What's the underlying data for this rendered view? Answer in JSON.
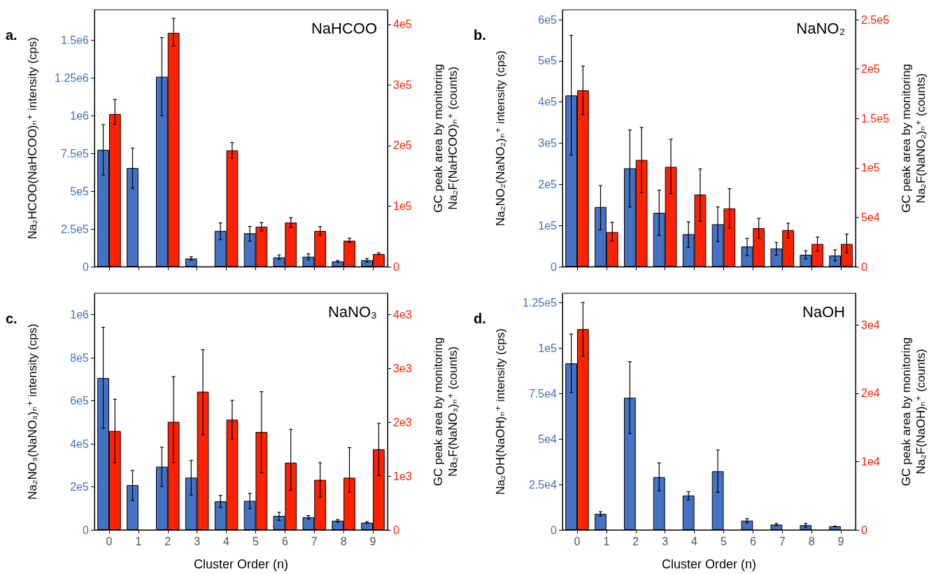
{
  "chart_data": [
    {
      "type": "bar",
      "title": "NaHCOO",
      "annotations": [
        "a."
      ],
      "categories": [
        "0",
        "1",
        "2",
        "3",
        "4",
        "5",
        "6",
        "7",
        "8",
        "9"
      ],
      "ylabel": "Na₂HCOO(NaHCOO)ₙ⁺ intensity (cps)",
      "y2label": "GC peak area by monitoring\nNa₂F(NaHCOO)ₙ⁺ (counts)",
      "ylim": [
        0,
        1700000
      ],
      "yticks": [
        {
          "value": 0,
          "label": "0"
        },
        {
          "value": 250000,
          "label": "2.5e5"
        },
        {
          "value": 500000,
          "label": "5e5"
        },
        {
          "value": 750000,
          "label": "7.5e5"
        },
        {
          "value": 1000000,
          "label": "1e6"
        },
        {
          "value": 1250000,
          "label": "1.25e6"
        },
        {
          "value": 1500000,
          "label": "1.5e6"
        }
      ],
      "y2lim": [
        0,
        424000
      ],
      "y2ticks": [
        {
          "value": 0,
          "label": "0"
        },
        {
          "value": 100000,
          "label": "1e5"
        },
        {
          "value": 200000,
          "label": "2e5"
        },
        {
          "value": 300000,
          "label": "3e5"
        },
        {
          "value": 400000,
          "label": "4e5"
        }
      ],
      "tick_labels": "y",
      "series": [
        {
          "color": "#4472c4",
          "values": [
            773000,
            653000,
            1257000,
            54000,
            237000,
            221000,
            62000,
            66000,
            35000,
            43000
          ],
          "errors": [
            [
              606000,
              940000
            ],
            [
              519000,
              785000
            ],
            [
              999000,
              1516000
            ],
            [
              43000,
              66000
            ],
            [
              179000,
              290000
            ],
            [
              169000,
              266000
            ],
            [
              47000,
              78000
            ],
            [
              47000,
              85000
            ],
            [
              29000,
              41000
            ],
            [
              31000,
              54000
            ]
          ]
        },
        {
          "color": "#ff2200",
          "axis": "y2",
          "values": [
            252000,
            null,
            386000,
            null,
            192000,
            66000,
            73000,
            59000,
            43000,
            21000
          ],
          "errors": [
            [
              235000,
              276000
            ],
            null,
            [
              364000,
              410000
            ],
            null,
            [
              179000,
              205000
            ],
            [
              59000,
              73000
            ],
            [
              65000,
              81000
            ],
            [
              52000,
              66000
            ],
            [
              40000,
              47000
            ],
            [
              20000,
              23000
            ]
          ]
        }
      ]
    },
    {
      "type": "bar",
      "title": "NaNO₂",
      "annotations": [
        "b."
      ],
      "categories": [
        "0",
        "1",
        "2",
        "3",
        "4",
        "5",
        "6",
        "7",
        "8",
        "9"
      ],
      "ylabel": "Na₂NO₂(NaNO₂)ₙ⁺ intensity (cps)",
      "y2label": "GC peak area by monitoring\nNa₂F(NaNO₂)ₙ⁺ (counts)",
      "ylim": [
        0,
        624000
      ],
      "yticks": [
        {
          "value": 0,
          "label": "0"
        },
        {
          "value": 100000,
          "label": "1e5"
        },
        {
          "value": 200000,
          "label": "2e5"
        },
        {
          "value": 300000,
          "label": "3e5"
        },
        {
          "value": 400000,
          "label": "4e5"
        },
        {
          "value": 500000,
          "label": "5e5"
        },
        {
          "value": 600000,
          "label": "6e5"
        }
      ],
      "y2lim": [
        0,
        260000
      ],
      "y2ticks": [
        {
          "value": 0,
          "label": "0"
        },
        {
          "value": 50000,
          "label": "5e4"
        },
        {
          "value": 100000,
          "label": "1e5"
        },
        {
          "value": 150000,
          "label": "1.5e5"
        },
        {
          "value": 200000,
          "label": "2e5"
        },
        {
          "value": 250000,
          "label": "2.5e5"
        }
      ],
      "tick_labels": "y",
      "series": [
        {
          "color": "#4472c4",
          "values": [
            416000,
            145000,
            239000,
            131000,
            79000,
            103000,
            49000,
            44000,
            29000,
            27000
          ],
          "errors": [
            [
              271000,
              562000
            ],
            [
              90000,
              197000
            ],
            [
              145000,
              332000
            ],
            [
              76000,
              186000
            ],
            [
              47000,
              109000
            ],
            [
              61000,
              145000
            ],
            [
              27000,
              69000
            ],
            [
              28000,
              59000
            ],
            [
              19000,
              39000
            ],
            [
              14000,
              41000
            ]
          ]
        },
        {
          "color": "#ff2200",
          "axis": "y2",
          "values": [
            178500,
            35000,
            108000,
            101000,
            73000,
            59000,
            39000,
            37000,
            23000,
            23000
          ],
          "errors": [
            [
              154000,
              203000
            ],
            [
              26000,
              45000
            ],
            [
              75000,
              141000
            ],
            [
              74000,
              129000
            ],
            [
              46000,
              99000
            ],
            [
              39000,
              79000
            ],
            [
              29000,
              49000
            ],
            [
              29000,
              44000
            ],
            [
              16000,
              30000
            ],
            [
              14000,
              33000
            ]
          ]
        }
      ]
    },
    {
      "type": "bar",
      "title": "NaNO₃",
      "annotations": [
        "c."
      ],
      "categories": [
        "0",
        "1",
        "2",
        "3",
        "4",
        "5",
        "6",
        "7",
        "8",
        "9"
      ],
      "xlabel": "Cluster Order (n)",
      "ylabel": "Na₂NO₃(NaNO₃)ₙ⁺ intensity (cps)",
      "y2label": "GC peak area by monitoring\nNa₂F(NaNO₃)ₙ⁺ (counts)",
      "ylim": [
        0,
        1100000
      ],
      "yticks": [
        {
          "value": 0,
          "label": "0"
        },
        {
          "value": 200000,
          "label": "2e5"
        },
        {
          "value": 400000,
          "label": "4e5"
        },
        {
          "value": 600000,
          "label": "6e5"
        },
        {
          "value": 800000,
          "label": "8e5"
        },
        {
          "value": 1000000,
          "label": "1e6"
        }
      ],
      "y2lim": [
        0,
        4400
      ],
      "y2ticks": [
        {
          "value": 0,
          "label": "0"
        },
        {
          "value": 1000,
          "label": "1e3"
        },
        {
          "value": 2000,
          "label": "2e3"
        },
        {
          "value": 3000,
          "label": "3e3"
        },
        {
          "value": 4000,
          "label": "4e3"
        }
      ],
      "series": [
        {
          "color": "#4472c4",
          "values": [
            706000,
            208000,
            294000,
            243000,
            133000,
            135000,
            65000,
            59000,
            43000,
            34000
          ],
          "errors": [
            [
              473000,
              942000
            ],
            [
              137000,
              276000
            ],
            [
              203000,
              384000
            ],
            [
              162000,
              323000
            ],
            [
              104000,
              160000
            ],
            [
              99000,
              170000
            ],
            [
              44000,
              82000
            ],
            [
              51000,
              67000
            ],
            [
              37000,
              48000
            ],
            [
              30000,
              38000
            ]
          ]
        },
        {
          "color": "#ff2200",
          "axis": "y2",
          "values": [
            1840,
            null,
            2010,
            2570,
            2050,
            1820,
            1250,
            930,
            970,
            1500
          ],
          "errors": [
            [
              1250,
              2430
            ],
            null,
            [
              1250,
              2850
            ],
            [
              1770,
              3350
            ],
            [
              1690,
              2410
            ],
            [
              1060,
              2570
            ],
            [
              740,
              1870
            ],
            [
              610,
              1250
            ],
            [
              700,
              1530
            ],
            [
              1010,
              1980
            ]
          ]
        }
      ]
    },
    {
      "type": "bar",
      "title": "NaOH",
      "annotations": [
        "d."
      ],
      "categories": [
        "0",
        "1",
        "2",
        "3",
        "4",
        "5",
        "6",
        "7",
        "8",
        "9"
      ],
      "xlabel": "Cluster Order (n)",
      "ylabel": "Na₂OH(NaOH)ₙ⁺ intensity (cps)",
      "y2label": "GC peak area by monitoring\nNa₂F(NaOH)ₙ⁺ (counts)",
      "ylim": [
        0,
        130000
      ],
      "yticks": [
        {
          "value": 0,
          "label": "0"
        },
        {
          "value": 25000,
          "label": "2.5e4"
        },
        {
          "value": 50000,
          "label": "5e4"
        },
        {
          "value": 75000,
          "label": "7.5e4"
        },
        {
          "value": 100000,
          "label": "1e5"
        },
        {
          "value": 125000,
          "label": "1.25e5"
        }
      ],
      "y2lim": [
        0,
        34640
      ],
      "y2ticks": [
        {
          "value": 0,
          "label": "0"
        },
        {
          "value": 10000,
          "label": "1e4"
        },
        {
          "value": 20000,
          "label": "2e4"
        },
        {
          "value": 30000,
          "label": "3e4"
        }
      ],
      "series": [
        {
          "color": "#4472c4",
          "values": [
            91500,
            8800,
            72600,
            29000,
            18900,
            32200,
            5100,
            2900,
            2600,
            2000
          ],
          "errors": [
            [
              75500,
              107600
            ],
            [
              7700,
              10000
            ],
            [
              53000,
              92400
            ],
            [
              21500,
              36800
            ],
            [
              16500,
              21000
            ],
            [
              20600,
              43900
            ],
            [
              3900,
              6200
            ],
            [
              2300,
              3500
            ],
            [
              1500,
              3600
            ],
            [
              1800,
              2100
            ]
          ]
        },
        {
          "color": "#ff2200",
          "axis": "y2",
          "values": [
            29400,
            null,
            null,
            null,
            null,
            null,
            null,
            null,
            null,
            null
          ],
          "errors": [
            [
              25400,
              33300
            ],
            null,
            null,
            null,
            null,
            null,
            null,
            null,
            null,
            null
          ]
        }
      ]
    }
  ]
}
